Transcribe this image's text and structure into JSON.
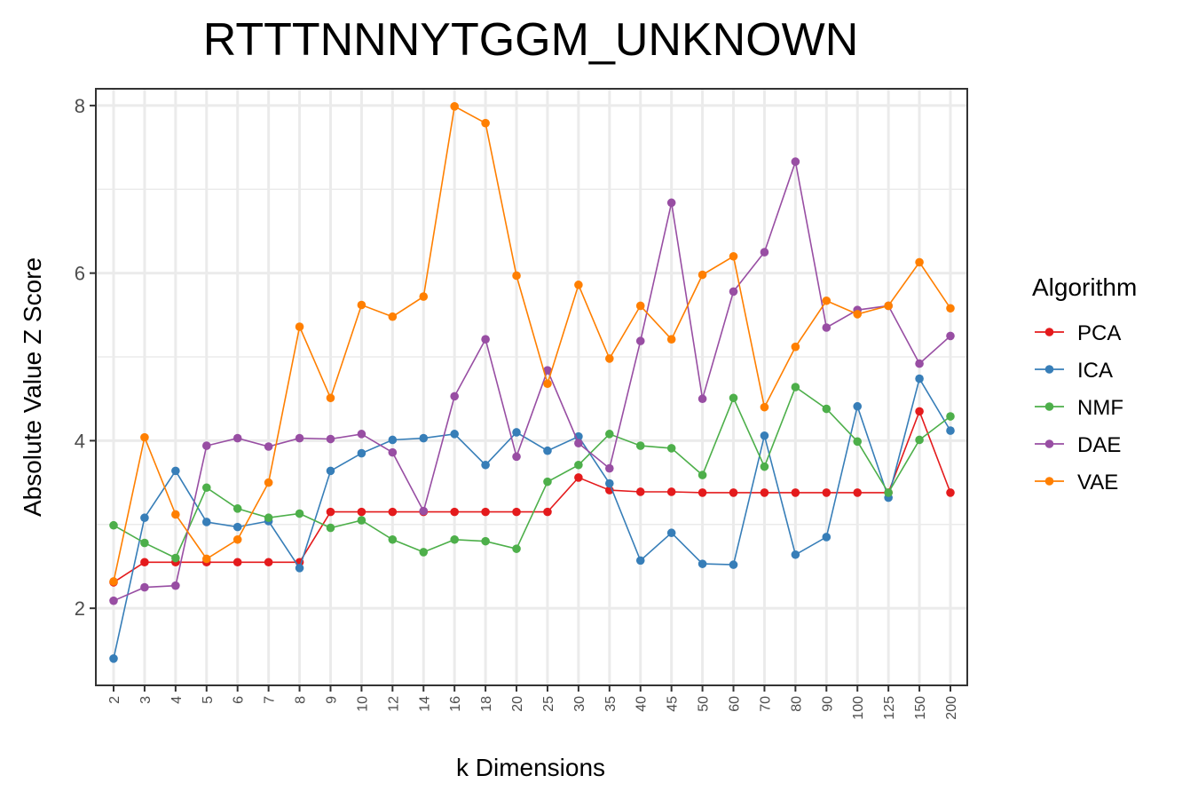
{
  "chart_data": {
    "type": "line",
    "title": "RTTTNNNYTGGM_UNKNOWN",
    "xlabel": "k Dimensions",
    "ylabel": "Absolute Value Z Score",
    "categories": [
      "2",
      "3",
      "4",
      "5",
      "6",
      "7",
      "8",
      "9",
      "10",
      "12",
      "14",
      "16",
      "18",
      "20",
      "25",
      "30",
      "35",
      "40",
      "45",
      "50",
      "60",
      "70",
      "80",
      "90",
      "100",
      "125",
      "150",
      "200"
    ],
    "ylim": [
      1.08,
      8.2
    ],
    "yticks": [
      2,
      4,
      6,
      8
    ],
    "grid": true,
    "legend": {
      "title": "Algorithm",
      "position": "right"
    },
    "series": [
      {
        "name": "PCA",
        "color": "#e41a1c",
        "values": [
          2.31,
          2.55,
          2.55,
          2.55,
          2.55,
          2.55,
          2.55,
          3.15,
          3.15,
          3.15,
          3.15,
          3.15,
          3.15,
          3.15,
          3.15,
          3.56,
          3.41,
          3.39,
          3.39,
          3.38,
          3.38,
          3.38,
          3.38,
          3.38,
          3.38,
          3.38,
          4.35,
          3.38
        ]
      },
      {
        "name": "ICA",
        "color": "#377eb8",
        "values": [
          1.4,
          3.08,
          3.64,
          3.03,
          2.97,
          3.04,
          2.48,
          3.64,
          3.85,
          4.01,
          4.03,
          4.08,
          3.71,
          4.1,
          3.88,
          4.05,
          3.49,
          2.57,
          2.9,
          2.53,
          2.52,
          4.06,
          2.64,
          2.85,
          4.41,
          3.32,
          4.74,
          4.12
        ]
      },
      {
        "name": "NMF",
        "color": "#4daf4a",
        "values": [
          2.99,
          2.78,
          2.6,
          3.44,
          3.19,
          3.08,
          3.13,
          2.96,
          3.05,
          2.82,
          2.67,
          2.82,
          2.8,
          2.71,
          3.51,
          3.71,
          4.08,
          3.94,
          3.91,
          3.59,
          4.51,
          3.69,
          4.64,
          4.38,
          3.99,
          3.38,
          4.01,
          4.29
        ]
      },
      {
        "name": "DAE",
        "color": "#984ea3",
        "values": [
          2.09,
          2.25,
          2.27,
          3.94,
          4.03,
          3.93,
          4.03,
          4.02,
          4.08,
          3.86,
          3.16,
          4.53,
          5.21,
          3.81,
          4.84,
          3.97,
          3.67,
          5.19,
          6.84,
          4.5,
          5.78,
          6.25,
          7.33,
          5.35,
          5.56,
          5.61,
          4.92,
          5.25
        ]
      },
      {
        "name": "VAE",
        "color": "#ff7f00",
        "values": [
          2.32,
          4.04,
          3.12,
          2.59,
          2.82,
          3.5,
          5.36,
          4.51,
          5.62,
          5.48,
          5.72,
          7.99,
          7.79,
          5.97,
          4.68,
          5.86,
          4.98,
          5.61,
          5.21,
          5.98,
          6.2,
          4.4,
          5.12,
          5.67,
          5.51,
          5.61,
          6.13,
          5.58
        ]
      }
    ]
  }
}
